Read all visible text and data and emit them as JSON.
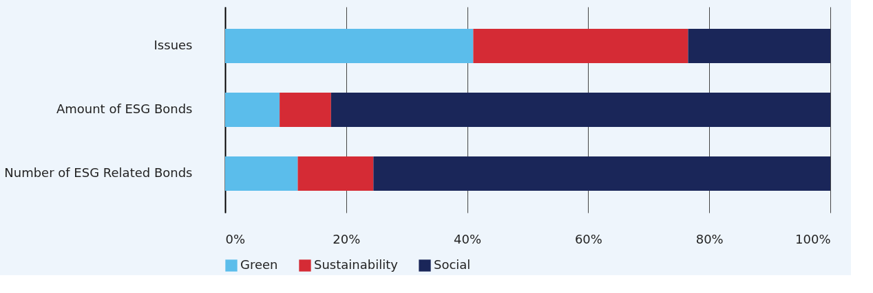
{
  "chart_data": {
    "type": "bar",
    "orientation": "horizontal",
    "stacked": true,
    "categories": [
      "Issues",
      "Amount of ESG Bonds",
      "Number of ESG Related Bonds"
    ],
    "series": [
      {
        "name": "Green",
        "color": "#5bbdeb",
        "values": [
          41,
          9,
          12
        ]
      },
      {
        "name": "Sustainability",
        "color": "#d52b35",
        "values": [
          35.5,
          8.5,
          12.5
        ]
      },
      {
        "name": "Social",
        "color": "#1a2659",
        "values": [
          23.5,
          82.5,
          75.5
        ]
      }
    ],
    "xlim": [
      0,
      100
    ],
    "xticks": [
      {
        "value": 0,
        "label": "0%"
      },
      {
        "value": 20,
        "label": "20%"
      },
      {
        "value": 40,
        "label": "40%"
      },
      {
        "value": 60,
        "label": "60%"
      },
      {
        "value": 80,
        "label": "80%"
      },
      {
        "value": 100,
        "label": "100%"
      }
    ],
    "grid": "x",
    "legend": "bottom"
  }
}
